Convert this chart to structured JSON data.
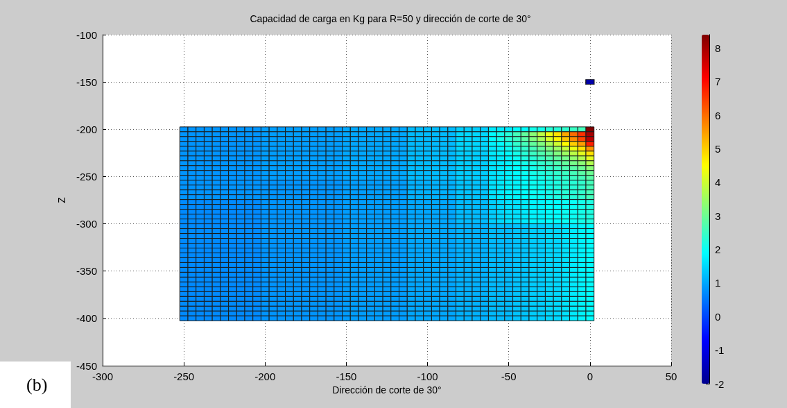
{
  "chart_data": [
    {
      "type": "scatter",
      "title": "Capacidad de carga en Kg para R=50 y dirección de corte de 30°",
      "xlabel": "Dirección de corte de 30°",
      "ylabel": "Z",
      "annotations": [
        "(b)"
      ],
      "xlim": [
        -300,
        50
      ],
      "xticks": [
        -300,
        -250,
        -200,
        -150,
        -100,
        -50,
        0,
        50
      ],
      "ylim": [
        -450,
        -100
      ],
      "yticks": [
        -450,
        -150,
        -100
      ],
      "tick_labels": "y",
      "clim": [
        -2,
        8.4
      ],
      "cticks": [
        -2,
        8
      ],
      "grid": true,
      "marker": "square",
      "x": [
        0
      ],
      "values": [
        -150
      ],
      "cvalues": [
        -1.7
      ]
    },
    {
      "type": "heatmap",
      "xlim": [
        -300,
        50
      ],
      "xticks": [
        -300,
        -250,
        -200,
        -150,
        -100,
        -50,
        0,
        50
      ],
      "ylim": [
        -402.5,
        -197.5
      ],
      "yticks": [
        -400,
        -350,
        -300,
        -250,
        -200
      ],
      "clim": [
        -2,
        8.4
      ],
      "cticks": [
        -1,
        0,
        1,
        2,
        3,
        4,
        5,
        6,
        7
      ],
      "grid": true,
      "x": [
        -250,
        -245,
        -240,
        -235,
        -230,
        -225,
        -220,
        -215,
        -210,
        -205,
        -200,
        -195,
        -190,
        -185,
        -180,
        -175,
        -170,
        -165,
        -160,
        -155,
        -150,
        -145,
        -140,
        -135,
        -130,
        -125,
        -120,
        -115,
        -110,
        -105,
        -100,
        -95,
        -90,
        -85,
        -80,
        -75,
        -70,
        -65,
        -60,
        -55,
        -50,
        -45,
        -40,
        -35,
        -30,
        -25,
        -20,
        -15,
        -10,
        -5,
        0
      ],
      "cells": [
        [
          0.8,
          0.8,
          0.8,
          0.8,
          0.8,
          0.8,
          0.8,
          0.8,
          0.8,
          0.8,
          0.9,
          0.9,
          0.9,
          0.9,
          0.9,
          0.9,
          0.9,
          0.9,
          0.9,
          0.9,
          1.0,
          1.0,
          1.0,
          1.0,
          1.0,
          1.0,
          1.0,
          1.0,
          1.2,
          1.2,
          1.2,
          1.2,
          1.2,
          1.2,
          1.4,
          1.4,
          1.4,
          1.4,
          1.7,
          1.7,
          1.7,
          1.9,
          1.9,
          2.1,
          2.1,
          2.3,
          2.3,
          2.4,
          2.5,
          2.6,
          8.4
        ],
        [
          0.8,
          0.8,
          0.8,
          0.8,
          0.8,
          0.8,
          0.8,
          0.8,
          0.8,
          0.8,
          0.9,
          0.9,
          0.9,
          0.9,
          0.9,
          0.9,
          0.9,
          0.9,
          0.9,
          0.9,
          1.0,
          1.0,
          1.0,
          1.0,
          1.0,
          1.0,
          1.0,
          1.0,
          1.2,
          1.2,
          1.2,
          1.2,
          1.2,
          1.2,
          1.5,
          1.5,
          1.5,
          1.5,
          1.9,
          2.1,
          2.3,
          2.6,
          2.9,
          3.3,
          3.8,
          4.3,
          4.8,
          5.4,
          6.0,
          6.6,
          8.0
        ],
        [
          0.8,
          0.8,
          0.8,
          0.8,
          0.8,
          0.8,
          0.8,
          0.8,
          0.8,
          0.8,
          0.9,
          0.9,
          0.9,
          0.9,
          0.9,
          0.9,
          0.9,
          0.9,
          0.9,
          0.9,
          1.0,
          1.0,
          1.0,
          1.0,
          1.0,
          1.0,
          1.0,
          1.0,
          1.2,
          1.2,
          1.2,
          1.2,
          1.2,
          1.2,
          1.5,
          1.5,
          1.5,
          1.5,
          1.9,
          2.1,
          2.3,
          2.5,
          2.8,
          3.2,
          3.6,
          4.1,
          4.6,
          5.1,
          5.7,
          6.4,
          7.8
        ],
        [
          0.8,
          0.8,
          0.8,
          0.8,
          0.8,
          0.8,
          0.8,
          0.8,
          0.8,
          0.8,
          0.9,
          0.9,
          0.9,
          0.9,
          0.9,
          0.9,
          0.9,
          0.9,
          0.9,
          0.9,
          1.0,
          1.0,
          1.0,
          1.0,
          1.0,
          1.0,
          1.0,
          1.0,
          1.2,
          1.2,
          1.2,
          1.2,
          1.2,
          1.2,
          1.5,
          1.5,
          1.5,
          1.5,
          1.8,
          1.9,
          2.1,
          2.4,
          2.6,
          2.9,
          3.2,
          3.6,
          4.0,
          4.5,
          5.0,
          5.5,
          6.8
        ],
        [
          0.8,
          0.8,
          0.8,
          0.8,
          0.8,
          0.8,
          0.8,
          0.8,
          0.8,
          0.8,
          0.9,
          0.9,
          0.9,
          0.9,
          0.9,
          0.9,
          0.9,
          0.9,
          0.9,
          0.9,
          1.0,
          1.0,
          1.0,
          1.0,
          1.0,
          1.0,
          1.0,
          1.0,
          1.2,
          1.2,
          1.2,
          1.2,
          1.2,
          1.2,
          1.5,
          1.5,
          1.5,
          1.5,
          1.7,
          1.8,
          2.0,
          2.2,
          2.4,
          2.6,
          2.9,
          3.2,
          3.5,
          3.9,
          4.3,
          4.8,
          5.6
        ],
        [
          0.8,
          0.8,
          0.8,
          0.8,
          0.8,
          0.8,
          0.8,
          0.8,
          0.8,
          0.8,
          0.9,
          0.9,
          0.9,
          0.9,
          0.9,
          0.9,
          0.9,
          0.9,
          0.9,
          0.9,
          1.0,
          1.0,
          1.0,
          1.0,
          1.0,
          1.0,
          1.0,
          1.0,
          1.2,
          1.2,
          1.2,
          1.2,
          1.2,
          1.2,
          1.4,
          1.4,
          1.4,
          1.4,
          1.7,
          1.8,
          1.9,
          2.1,
          2.3,
          2.5,
          2.7,
          2.9,
          3.2,
          3.5,
          3.8,
          4.2,
          4.8
        ],
        [
          0.8,
          0.8,
          0.8,
          0.8,
          0.8,
          0.8,
          0.8,
          0.8,
          0.8,
          0.8,
          0.9,
          0.9,
          0.9,
          0.9,
          0.9,
          0.9,
          0.9,
          0.9,
          0.9,
          0.9,
          1.0,
          1.0,
          1.0,
          1.0,
          1.0,
          1.0,
          1.0,
          1.0,
          1.2,
          1.2,
          1.2,
          1.2,
          1.2,
          1.2,
          1.4,
          1.4,
          1.4,
          1.4,
          1.6,
          1.7,
          1.8,
          2.0,
          2.2,
          2.3,
          2.5,
          2.7,
          2.9,
          3.1,
          3.4,
          3.7,
          4.2
        ],
        [
          0.8,
          0.8,
          0.8,
          0.8,
          0.8,
          0.8,
          0.8,
          0.8,
          0.8,
          0.8,
          0.9,
          0.9,
          0.9,
          0.9,
          0.9,
          0.9,
          0.9,
          0.9,
          0.9,
          0.9,
          1.0,
          1.0,
          1.0,
          1.0,
          1.0,
          1.0,
          1.0,
          1.0,
          1.2,
          1.2,
          1.2,
          1.2,
          1.2,
          1.2,
          1.4,
          1.4,
          1.4,
          1.4,
          1.6,
          1.7,
          1.8,
          2.0,
          2.1,
          2.2,
          2.4,
          2.5,
          2.7,
          2.9,
          3.1,
          3.3,
          3.7
        ],
        [
          0.8,
          0.8,
          0.8,
          0.8,
          0.8,
          0.8,
          0.8,
          0.8,
          0.8,
          0.8,
          0.9,
          0.9,
          0.9,
          0.9,
          0.9,
          0.9,
          0.9,
          0.9,
          0.9,
          0.9,
          1.0,
          1.0,
          1.0,
          1.0,
          1.0,
          1.0,
          1.0,
          1.0,
          1.2,
          1.2,
          1.2,
          1.2,
          1.2,
          1.2,
          1.4,
          1.4,
          1.4,
          1.4,
          1.6,
          1.7,
          1.8,
          1.9,
          2.0,
          2.1,
          2.3,
          2.4,
          2.5,
          2.7,
          2.8,
          3.0,
          3.3
        ],
        [
          0.8,
          0.8,
          0.8,
          0.8,
          0.8,
          0.8,
          0.8,
          0.8,
          0.8,
          0.8,
          0.9,
          0.9,
          0.9,
          0.9,
          0.9,
          0.9,
          0.9,
          0.9,
          0.9,
          0.9,
          1.0,
          1.0,
          1.0,
          1.0,
          1.0,
          1.0,
          1.0,
          1.0,
          1.2,
          1.2,
          1.2,
          1.2,
          1.2,
          1.2,
          1.4,
          1.4,
          1.4,
          1.4,
          1.6,
          1.7,
          1.8,
          1.9,
          2.0,
          2.1,
          2.2,
          2.3,
          2.4,
          2.5,
          2.6,
          2.8,
          3.0
        ],
        [
          0.8,
          0.8,
          0.8,
          0.8,
          0.8,
          0.8,
          0.8,
          0.8,
          0.8,
          0.8,
          0.9,
          0.9,
          0.9,
          0.9,
          0.9,
          0.9,
          0.9,
          0.9,
          0.9,
          0.9,
          1.0,
          1.0,
          1.0,
          1.0,
          1.0,
          1.0,
          1.0,
          1.0,
          1.2,
          1.2,
          1.2,
          1.2,
          1.2,
          1.2,
          1.4,
          1.4,
          1.4,
          1.4,
          1.6,
          1.7,
          1.8,
          1.8,
          1.9,
          2.0,
          2.1,
          2.2,
          2.3,
          2.4,
          2.5,
          2.6,
          2.8
        ],
        [
          0.8,
          0.8,
          0.8,
          0.8,
          0.8,
          0.8,
          0.8,
          0.8,
          0.8,
          0.8,
          0.8,
          0.8,
          0.8,
          0.8,
          0.8,
          0.8,
          0.8,
          0.8,
          0.8,
          0.8,
          0.9,
          0.9,
          0.9,
          0.9,
          0.9,
          0.9,
          0.9,
          0.9,
          1.1,
          1.1,
          1.1,
          1.1,
          1.1,
          1.1,
          1.3,
          1.3,
          1.3,
          1.3,
          1.6,
          1.7,
          1.8,
          1.8,
          1.9,
          2.0,
          2.0,
          2.1,
          2.2,
          2.3,
          2.3,
          2.4,
          2.6
        ],
        [
          0.8,
          0.8,
          0.8,
          0.8,
          0.8,
          0.8,
          0.8,
          0.8,
          0.8,
          0.8,
          0.8,
          0.8,
          0.8,
          0.8,
          0.8,
          0.8,
          0.8,
          0.8,
          0.8,
          0.8,
          0.9,
          0.9,
          0.9,
          0.9,
          0.9,
          0.9,
          0.9,
          0.9,
          1.1,
          1.1,
          1.1,
          1.1,
          1.1,
          1.1,
          1.3,
          1.3,
          1.3,
          1.3,
          1.6,
          1.7,
          1.8,
          1.8,
          1.9,
          2.0,
          2.0,
          2.1,
          2.2,
          2.3,
          2.3,
          2.4,
          2.6
        ],
        [
          0.8,
          0.8,
          0.8,
          0.8,
          0.8,
          0.8,
          0.8,
          0.8,
          0.8,
          0.8,
          0.8,
          0.8,
          0.8,
          0.8,
          0.8,
          0.8,
          0.8,
          0.8,
          0.8,
          0.8,
          0.9,
          0.9,
          0.9,
          0.9,
          0.9,
          0.9,
          0.9,
          0.9,
          1.1,
          1.1,
          1.1,
          1.1,
          1.1,
          1.1,
          1.3,
          1.3,
          1.3,
          1.3,
          1.6,
          1.7,
          1.8,
          1.8,
          1.9,
          2.0,
          2.0,
          2.1,
          2.2,
          2.3,
          2.3,
          2.4,
          2.6
        ],
        [
          0.8,
          0.8,
          0.8,
          0.8,
          0.8,
          0.8,
          0.8,
          0.8,
          0.8,
          0.8,
          0.8,
          0.8,
          0.8,
          0.8,
          0.8,
          0.8,
          0.8,
          0.8,
          0.8,
          0.8,
          0.9,
          0.9,
          0.9,
          0.9,
          0.9,
          0.9,
          0.9,
          0.9,
          1.1,
          1.1,
          1.1,
          1.1,
          1.1,
          1.1,
          1.3,
          1.3,
          1.3,
          1.3,
          1.6,
          1.7,
          1.8,
          1.8,
          1.9,
          2.0,
          2.0,
          2.1,
          2.2,
          2.3,
          2.3,
          2.4,
          2.6
        ],
        [
          0.7,
          0.7,
          0.7,
          0.7,
          0.7,
          0.7,
          0.7,
          0.7,
          0.7,
          0.7,
          0.8,
          0.8,
          0.8,
          0.8,
          0.8,
          0.8,
          0.8,
          0.8,
          0.8,
          0.8,
          0.9,
          0.9,
          0.9,
          0.9,
          0.9,
          0.9,
          0.9,
          0.9,
          1.0,
          1.0,
          1.0,
          1.0,
          1.0,
          1.0,
          1.2,
          1.2,
          1.2,
          1.2,
          1.4,
          1.5,
          1.6,
          1.6,
          1.7,
          1.8,
          1.8,
          1.9,
          1.9,
          2.0,
          2.0,
          2.1,
          2.2
        ],
        [
          0.7,
          0.7,
          0.7,
          0.7,
          0.7,
          0.7,
          0.7,
          0.7,
          0.7,
          0.7,
          0.8,
          0.8,
          0.8,
          0.8,
          0.8,
          0.8,
          0.8,
          0.8,
          0.8,
          0.8,
          0.9,
          0.9,
          0.9,
          0.9,
          0.9,
          0.9,
          0.9,
          0.9,
          1.0,
          1.0,
          1.0,
          1.0,
          1.0,
          1.0,
          1.2,
          1.2,
          1.2,
          1.2,
          1.4,
          1.5,
          1.6,
          1.6,
          1.7,
          1.8,
          1.8,
          1.9,
          1.9,
          2.0,
          2.0,
          2.1,
          2.2
        ],
        [
          0.7,
          0.7,
          0.7,
          0.7,
          0.7,
          0.7,
          0.7,
          0.7,
          0.7,
          0.7,
          0.8,
          0.8,
          0.8,
          0.8,
          0.8,
          0.8,
          0.8,
          0.8,
          0.8,
          0.8,
          0.9,
          0.9,
          0.9,
          0.9,
          0.9,
          0.9,
          0.9,
          0.9,
          1.0,
          1.0,
          1.0,
          1.0,
          1.0,
          1.0,
          1.2,
          1.2,
          1.2,
          1.2,
          1.4,
          1.5,
          1.6,
          1.6,
          1.7,
          1.8,
          1.8,
          1.9,
          1.9,
          2.0,
          2.0,
          2.1,
          2.2
        ],
        [
          0.7,
          0.7,
          0.7,
          0.7,
          0.7,
          0.7,
          0.7,
          0.7,
          0.7,
          0.7,
          0.8,
          0.8,
          0.8,
          0.8,
          0.8,
          0.8,
          0.8,
          0.8,
          0.8,
          0.8,
          0.9,
          0.9,
          0.9,
          0.9,
          0.9,
          0.9,
          0.9,
          0.9,
          1.0,
          1.0,
          1.0,
          1.0,
          1.0,
          1.0,
          1.2,
          1.2,
          1.2,
          1.2,
          1.4,
          1.5,
          1.6,
          1.6,
          1.7,
          1.8,
          1.8,
          1.9,
          1.9,
          2.0,
          2.0,
          2.1,
          2.2
        ],
        [
          0.7,
          0.7,
          0.7,
          0.7,
          0.7,
          0.7,
          0.7,
          0.7,
          0.7,
          0.7,
          0.8,
          0.8,
          0.8,
          0.8,
          0.8,
          0.8,
          0.8,
          0.8,
          0.8,
          0.8,
          0.9,
          0.9,
          0.9,
          0.9,
          0.9,
          0.9,
          0.9,
          0.9,
          1.0,
          1.0,
          1.0,
          1.0,
          1.0,
          1.0,
          1.2,
          1.2,
          1.2,
          1.2,
          1.4,
          1.5,
          1.6,
          1.6,
          1.7,
          1.8,
          1.8,
          1.9,
          1.9,
          2.0,
          2.0,
          2.1,
          2.2
        ],
        [
          0.7,
          0.7,
          0.7,
          0.7,
          0.7,
          0.7,
          0.7,
          0.7,
          0.7,
          0.7,
          0.8,
          0.8,
          0.8,
          0.8,
          0.8,
          0.8,
          0.8,
          0.8,
          0.8,
          0.8,
          0.9,
          0.9,
          0.9,
          0.9,
          0.9,
          0.9,
          0.9,
          0.9,
          1.0,
          1.0,
          1.0,
          1.0,
          1.0,
          1.0,
          1.1,
          1.1,
          1.1,
          1.1,
          1.2,
          1.2,
          1.2,
          1.3,
          1.3,
          1.4,
          1.4,
          1.5,
          1.5,
          1.6,
          1.7,
          1.8,
          1.9
        ],
        [
          0.7,
          0.7,
          0.7,
          0.7,
          0.7,
          0.7,
          0.7,
          0.7,
          0.7,
          0.7,
          0.8,
          0.8,
          0.8,
          0.8,
          0.8,
          0.8,
          0.8,
          0.8,
          0.8,
          0.8,
          0.9,
          0.9,
          0.9,
          0.9,
          0.9,
          0.9,
          0.9,
          0.9,
          1.0,
          1.0,
          1.0,
          1.0,
          1.0,
          1.0,
          1.1,
          1.1,
          1.1,
          1.1,
          1.2,
          1.2,
          1.2,
          1.3,
          1.3,
          1.4,
          1.4,
          1.5,
          1.5,
          1.6,
          1.7,
          1.8,
          1.9
        ],
        [
          0.7,
          0.7,
          0.7,
          0.7,
          0.7,
          0.7,
          0.7,
          0.7,
          0.7,
          0.7,
          0.8,
          0.8,
          0.8,
          0.8,
          0.8,
          0.8,
          0.8,
          0.8,
          0.8,
          0.8,
          0.9,
          0.9,
          0.9,
          0.9,
          0.9,
          0.9,
          0.9,
          0.9,
          1.0,
          1.0,
          1.0,
          1.0,
          1.0,
          1.0,
          1.1,
          1.1,
          1.1,
          1.1,
          1.2,
          1.2,
          1.2,
          1.3,
          1.3,
          1.4,
          1.4,
          1.5,
          1.5,
          1.6,
          1.7,
          1.8,
          1.9
        ],
        [
          0.7,
          0.7,
          0.7,
          0.7,
          0.7,
          0.7,
          0.7,
          0.7,
          0.7,
          0.7,
          0.8,
          0.8,
          0.8,
          0.8,
          0.8,
          0.8,
          0.8,
          0.8,
          0.8,
          0.8,
          0.9,
          0.9,
          0.9,
          0.9,
          0.9,
          0.9,
          0.9,
          0.9,
          1.0,
          1.0,
          1.0,
          1.0,
          1.0,
          1.0,
          1.1,
          1.1,
          1.1,
          1.1,
          1.2,
          1.2,
          1.2,
          1.3,
          1.3,
          1.4,
          1.4,
          1.5,
          1.5,
          1.6,
          1.7,
          1.8,
          1.9
        ],
        [
          0.7,
          0.7,
          0.7,
          0.7,
          0.7,
          0.7,
          0.7,
          0.7,
          0.7,
          0.7,
          0.8,
          0.8,
          0.8,
          0.8,
          0.8,
          0.8,
          0.8,
          0.8,
          0.8,
          0.8,
          0.9,
          0.9,
          0.9,
          0.9,
          0.9,
          0.9,
          0.9,
          0.9,
          1.0,
          1.0,
          1.0,
          1.0,
          1.0,
          1.0,
          1.1,
          1.1,
          1.1,
          1.1,
          1.2,
          1.2,
          1.2,
          1.3,
          1.3,
          1.4,
          1.4,
          1.5,
          1.5,
          1.6,
          1.7,
          1.8,
          1.9
        ],
        [
          0.7,
          0.7,
          0.7,
          0.7,
          0.7,
          0.7,
          0.7,
          0.7,
          0.7,
          0.7,
          0.8,
          0.8,
          0.8,
          0.8,
          0.8,
          0.8,
          0.8,
          0.8,
          0.8,
          0.8,
          0.9,
          0.9,
          0.9,
          0.9,
          0.9,
          0.9,
          0.9,
          0.9,
          1.0,
          1.0,
          1.0,
          1.0,
          1.0,
          1.0,
          1.1,
          1.1,
          1.1,
          1.1,
          1.2,
          1.2,
          1.2,
          1.3,
          1.3,
          1.4,
          1.4,
          1.5,
          1.5,
          1.6,
          1.7,
          1.8,
          1.9
        ],
        [
          0.7,
          0.7,
          0.7,
          0.7,
          0.7,
          0.7,
          0.7,
          0.7,
          0.7,
          0.7,
          0.8,
          0.8,
          0.8,
          0.8,
          0.8,
          0.8,
          0.8,
          0.8,
          0.8,
          0.8,
          0.9,
          0.9,
          0.9,
          0.9,
          0.9,
          0.9,
          0.9,
          0.9,
          1.0,
          1.0,
          1.0,
          1.0,
          1.0,
          1.0,
          1.1,
          1.1,
          1.1,
          1.1,
          1.2,
          1.2,
          1.2,
          1.3,
          1.3,
          1.4,
          1.4,
          1.5,
          1.5,
          1.6,
          1.7,
          1.8,
          1.9
        ],
        [
          0.7,
          0.7,
          0.7,
          0.7,
          0.7,
          0.7,
          0.7,
          0.7,
          0.7,
          0.7,
          0.8,
          0.8,
          0.8,
          0.8,
          0.8,
          0.8,
          0.8,
          0.8,
          0.8,
          0.8,
          0.9,
          0.9,
          0.9,
          0.9,
          0.9,
          0.9,
          0.9,
          0.9,
          1.0,
          1.0,
          1.0,
          1.0,
          1.0,
          1.0,
          1.1,
          1.1,
          1.1,
          1.1,
          1.2,
          1.2,
          1.2,
          1.3,
          1.3,
          1.4,
          1.4,
          1.5,
          1.5,
          1.6,
          1.7,
          1.8,
          1.9
        ],
        [
          0.7,
          0.7,
          0.7,
          0.7,
          0.7,
          0.7,
          0.7,
          0.7,
          0.7,
          0.7,
          0.8,
          0.8,
          0.8,
          0.8,
          0.8,
          0.8,
          0.8,
          0.8,
          0.8,
          0.8,
          0.9,
          0.9,
          0.9,
          0.9,
          0.9,
          0.9,
          0.9,
          0.9,
          1.0,
          1.0,
          1.0,
          1.0,
          1.0,
          1.0,
          1.1,
          1.1,
          1.1,
          1.1,
          1.2,
          1.2,
          1.2,
          1.3,
          1.3,
          1.4,
          1.4,
          1.5,
          1.5,
          1.6,
          1.7,
          1.8,
          1.9
        ],
        [
          0.7,
          0.7,
          0.7,
          0.7,
          0.7,
          0.7,
          0.7,
          0.7,
          0.7,
          0.7,
          0.8,
          0.8,
          0.8,
          0.8,
          0.8,
          0.8,
          0.8,
          0.8,
          0.8,
          0.8,
          0.9,
          0.9,
          0.9,
          0.9,
          0.9,
          0.9,
          0.9,
          0.9,
          1.0,
          1.0,
          1.0,
          1.0,
          1.0,
          1.0,
          1.1,
          1.1,
          1.1,
          1.1,
          1.2,
          1.2,
          1.2,
          1.3,
          1.3,
          1.4,
          1.4,
          1.5,
          1.5,
          1.6,
          1.7,
          1.8,
          1.9
        ],
        [
          0.7,
          0.7,
          0.7,
          0.7,
          0.7,
          0.7,
          0.7,
          0.7,
          0.7,
          0.7,
          0.8,
          0.8,
          0.8,
          0.8,
          0.8,
          0.8,
          0.8,
          0.8,
          0.8,
          0.8,
          0.9,
          0.9,
          0.9,
          0.9,
          0.9,
          0.9,
          0.9,
          0.9,
          1.0,
          1.0,
          1.0,
          1.0,
          1.0,
          1.0,
          1.1,
          1.1,
          1.1,
          1.1,
          1.2,
          1.2,
          1.2,
          1.3,
          1.3,
          1.4,
          1.4,
          1.5,
          1.5,
          1.6,
          1.7,
          1.8,
          1.9
        ],
        [
          0.7,
          0.7,
          0.7,
          0.7,
          0.7,
          0.7,
          0.7,
          0.7,
          0.7,
          0.7,
          0.8,
          0.8,
          0.8,
          0.8,
          0.8,
          0.8,
          0.8,
          0.8,
          0.8,
          0.8,
          0.9,
          0.9,
          0.9,
          0.9,
          0.9,
          0.9,
          0.9,
          0.9,
          1.0,
          1.0,
          1.0,
          1.0,
          1.0,
          1.0,
          1.1,
          1.1,
          1.1,
          1.1,
          1.2,
          1.2,
          1.2,
          1.3,
          1.3,
          1.4,
          1.4,
          1.5,
          1.5,
          1.6,
          1.7,
          1.8,
          1.9
        ],
        [
          0.7,
          0.7,
          0.7,
          0.7,
          0.7,
          0.7,
          0.7,
          0.7,
          0.7,
          0.7,
          0.8,
          0.8,
          0.8,
          0.8,
          0.8,
          0.8,
          0.8,
          0.8,
          0.8,
          0.8,
          0.9,
          0.9,
          0.9,
          0.9,
          0.9,
          0.9,
          0.9,
          0.9,
          1.0,
          1.0,
          1.0,
          1.0,
          1.0,
          1.0,
          1.1,
          1.1,
          1.1,
          1.1,
          1.2,
          1.2,
          1.2,
          1.3,
          1.3,
          1.4,
          1.4,
          1.5,
          1.5,
          1.6,
          1.7,
          1.8,
          1.9
        ],
        [
          0.7,
          0.7,
          0.7,
          0.7,
          0.7,
          0.7,
          0.7,
          0.7,
          0.7,
          0.7,
          0.8,
          0.8,
          0.8,
          0.8,
          0.8,
          0.8,
          0.8,
          0.8,
          0.8,
          0.8,
          0.9,
          0.9,
          0.9,
          0.9,
          0.9,
          0.9,
          0.9,
          0.9,
          1.0,
          1.0,
          1.0,
          1.0,
          1.0,
          1.0,
          1.1,
          1.1,
          1.1,
          1.1,
          1.2,
          1.2,
          1.2,
          1.3,
          1.3,
          1.4,
          1.4,
          1.5,
          1.5,
          1.6,
          1.7,
          1.8,
          1.9
        ],
        [
          0.7,
          0.7,
          0.7,
          0.7,
          0.7,
          0.7,
          0.7,
          0.7,
          0.7,
          0.7,
          0.8,
          0.8,
          0.8,
          0.8,
          0.8,
          0.8,
          0.8,
          0.8,
          0.8,
          0.8,
          0.9,
          0.9,
          0.9,
          0.9,
          0.9,
          0.9,
          0.9,
          0.9,
          1.0,
          1.0,
          1.0,
          1.0,
          1.0,
          1.0,
          1.1,
          1.1,
          1.1,
          1.1,
          1.2,
          1.2,
          1.2,
          1.3,
          1.3,
          1.4,
          1.4,
          1.5,
          1.5,
          1.6,
          1.7,
          1.8,
          1.9
        ],
        [
          0.7,
          0.7,
          0.7,
          0.7,
          0.7,
          0.7,
          0.7,
          0.7,
          0.7,
          0.7,
          0.8,
          0.8,
          0.8,
          0.8,
          0.8,
          0.8,
          0.8,
          0.8,
          0.8,
          0.8,
          0.9,
          0.9,
          0.9,
          0.9,
          0.9,
          0.9,
          0.9,
          0.9,
          1.0,
          1.0,
          1.0,
          1.0,
          1.0,
          1.0,
          1.1,
          1.1,
          1.1,
          1.1,
          1.2,
          1.2,
          1.2,
          1.3,
          1.3,
          1.4,
          1.4,
          1.5,
          1.5,
          1.6,
          1.7,
          1.8,
          1.9
        ],
        [
          0.7,
          0.7,
          0.7,
          0.7,
          0.7,
          0.7,
          0.7,
          0.7,
          0.7,
          0.7,
          0.8,
          0.8,
          0.8,
          0.8,
          0.8,
          0.8,
          0.8,
          0.8,
          0.8,
          0.8,
          0.9,
          0.9,
          0.9,
          0.9,
          0.9,
          0.9,
          0.9,
          0.9,
          1.0,
          1.0,
          1.0,
          1.0,
          1.0,
          1.0,
          1.1,
          1.1,
          1.1,
          1.1,
          1.2,
          1.2,
          1.2,
          1.3,
          1.3,
          1.4,
          1.4,
          1.5,
          1.5,
          1.6,
          1.7,
          1.8,
          1.9
        ],
        [
          0.7,
          0.7,
          0.7,
          0.7,
          0.7,
          0.7,
          0.7,
          0.7,
          0.7,
          0.7,
          0.8,
          0.8,
          0.8,
          0.8,
          0.8,
          0.8,
          0.8,
          0.8,
          0.8,
          0.8,
          0.9,
          0.9,
          0.9,
          0.9,
          0.9,
          0.9,
          0.9,
          0.9,
          1.0,
          1.0,
          1.0,
          1.0,
          1.0,
          1.0,
          1.1,
          1.1,
          1.1,
          1.1,
          1.2,
          1.2,
          1.2,
          1.3,
          1.3,
          1.4,
          1.4,
          1.5,
          1.5,
          1.6,
          1.7,
          1.8,
          1.9
        ],
        [
          0.7,
          0.7,
          0.7,
          0.7,
          0.7,
          0.7,
          0.7,
          0.7,
          0.7,
          0.7,
          0.8,
          0.8,
          0.8,
          0.8,
          0.8,
          0.8,
          0.8,
          0.8,
          0.8,
          0.8,
          0.9,
          0.9,
          0.9,
          0.9,
          0.9,
          0.9,
          0.9,
          0.9,
          1.0,
          1.0,
          1.0,
          1.0,
          1.0,
          1.0,
          1.1,
          1.1,
          1.1,
          1.1,
          1.2,
          1.2,
          1.2,
          1.3,
          1.3,
          1.4,
          1.4,
          1.5,
          1.5,
          1.6,
          1.7,
          1.8,
          1.9
        ],
        [
          0.7,
          0.7,
          0.7,
          0.7,
          0.7,
          0.7,
          0.7,
          0.7,
          0.7,
          0.7,
          0.8,
          0.8,
          0.8,
          0.8,
          0.8,
          0.8,
          0.8,
          0.8,
          0.8,
          0.8,
          0.9,
          0.9,
          0.9,
          0.9,
          0.9,
          0.9,
          0.9,
          0.9,
          1.0,
          1.0,
          1.0,
          1.0,
          1.0,
          1.0,
          1.1,
          1.1,
          1.1,
          1.1,
          1.2,
          1.2,
          1.2,
          1.3,
          1.3,
          1.4,
          1.4,
          1.5,
          1.5,
          1.6,
          1.7,
          1.8,
          1.9
        ]
      ]
    }
  ]
}
